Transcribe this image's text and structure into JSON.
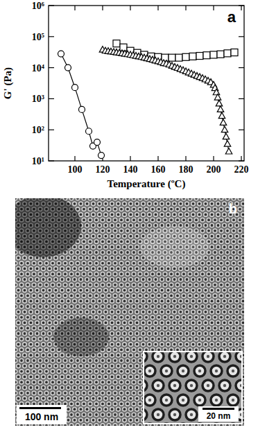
{
  "chart_data": {
    "type": "line",
    "log": "y",
    "grid": false,
    "tick_labels": true,
    "panel_label": "a",
    "x_label": "Temperature (ºC)",
    "y_label": "G' (Pa)",
    "xlim": [
      81,
      222
    ],
    "xticks": [
      100,
      120,
      140,
      160,
      180,
      200,
      220
    ],
    "ylim": [
      10,
      1000000
    ],
    "yticks": [
      {
        "value": 10,
        "label": "10¹"
      },
      {
        "value": 100,
        "label": "10²"
      },
      {
        "value": 1000,
        "label": "10³"
      },
      {
        "value": 10000,
        "label": "10⁴"
      },
      {
        "value": 100000,
        "label": "10⁵"
      },
      {
        "value": 1000000,
        "label": "10⁶"
      }
    ],
    "series": [
      {
        "color": "#000000",
        "marker": "circle",
        "line_style": "solid",
        "x": [
          90,
          95,
          100,
          105,
          110,
          113,
          116,
          119
        ],
        "values": [
          28000,
          10000,
          2300,
          450,
          90,
          30,
          40,
          15
        ]
      },
      {
        "color": "#000000",
        "marker": "square",
        "line_style": "none",
        "x": [
          130,
          135,
          140,
          145,
          150,
          155,
          160,
          165,
          170,
          175,
          180,
          185,
          190,
          195,
          200,
          205,
          210,
          215
        ],
        "values": [
          60000,
          45000,
          35000,
          30000,
          26000,
          23000,
          22000,
          21000,
          21000,
          21000,
          22000,
          23000,
          24000,
          25000,
          26000,
          27000,
          29000,
          31000
        ]
      },
      {
        "color": "#000000",
        "marker": "triangle",
        "line_style": "solid",
        "x": [
          120,
          122,
          124,
          126,
          128,
          130,
          132,
          134,
          136,
          138,
          140,
          142,
          144,
          146,
          148,
          150,
          152,
          154,
          156,
          158,
          160,
          162,
          164,
          166,
          168,
          170,
          172,
          174,
          176,
          178,
          180,
          182,
          184,
          186,
          188,
          190,
          192,
          194,
          196,
          198,
          200,
          201,
          202,
          203,
          204,
          205,
          206,
          207,
          208,
          209,
          210,
          211
        ],
        "values": [
          38000,
          35000,
          34000,
          33000,
          32000,
          31000,
          30000,
          29000,
          28000,
          27000,
          26000,
          25000,
          24000,
          23000,
          22000,
          21000,
          20000,
          19000,
          18000,
          17000,
          16000,
          15000,
          14000,
          13500,
          12500,
          11500,
          10500,
          9800,
          9000,
          8300,
          7600,
          7000,
          6400,
          5900,
          5400,
          5000,
          4600,
          4200,
          3800,
          3400,
          2800,
          2200,
          1600,
          1100,
          700,
          450,
          280,
          170,
          100,
          60,
          35,
          20
        ]
      }
    ]
  },
  "image_panel": {
    "label": "b",
    "scale_bar": "100 nm",
    "inset_scale_bar": "20 nm"
  }
}
